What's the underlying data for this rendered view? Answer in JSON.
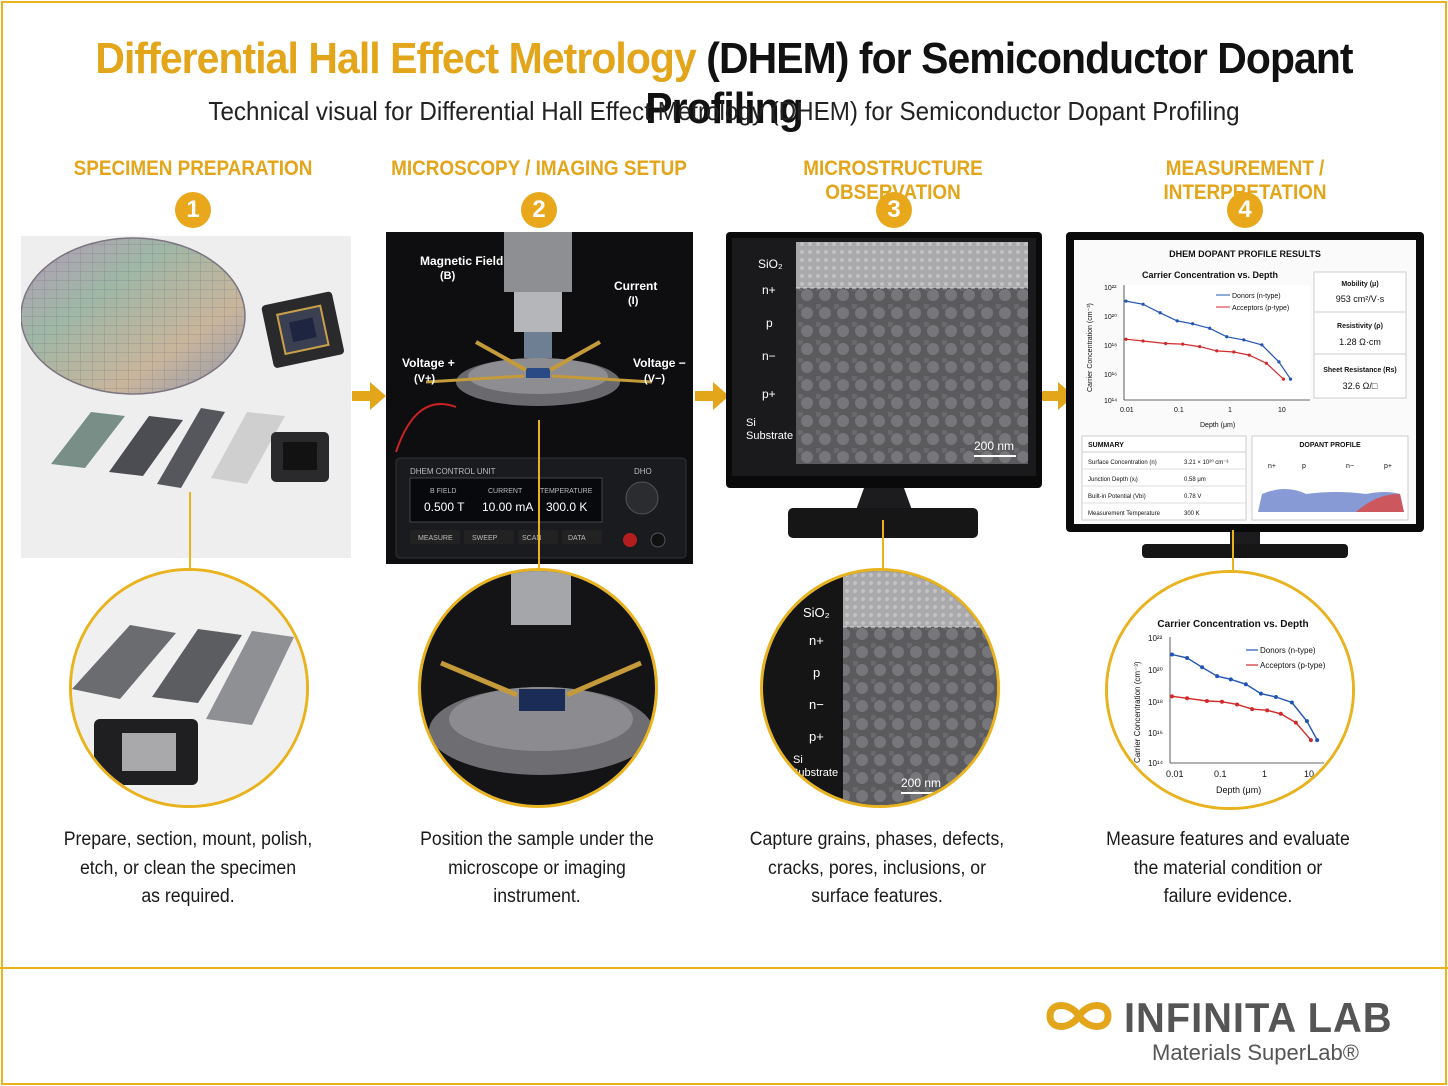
{
  "header": {
    "title_gold": "Differential Hall Effect Metrology",
    "title_dark": "(DHEM) for Semiconductor Dopant Profiling",
    "subtitle": "Technical visual for Differential Hall Effect Metrology (DHEM) for Semiconductor Dopant Profiling"
  },
  "steps": [
    {
      "number": "1",
      "title": "SPECIMEN PREPARATION",
      "caption_lines": [
        "Prepare, section, mount, polish,",
        "etch, or clean the specimen",
        "as required."
      ]
    },
    {
      "number": "2",
      "title": "MICROSCOPY / IMAGING SETUP",
      "caption_lines": [
        "Position the sample under the",
        "microscope or imaging",
        "instrument."
      ]
    },
    {
      "number": "3",
      "title": "MICROSTRUCTURE OBSERVATION",
      "caption_lines": [
        "Capture grains, phases, defects,",
        "cracks, pores, inclusions, or",
        "surface features."
      ]
    },
    {
      "number": "4",
      "title": "MEASUREMENT / INTERPRETATION",
      "caption_lines": [
        "Measure features and evaluate",
        "the material condition or",
        "failure evidence."
      ]
    }
  ],
  "setup": {
    "magnetic_field": "Magnetic Field",
    "magnetic_field_sym": "(B)",
    "current": "Current",
    "current_sym": "(I)",
    "voltage_plus": "Voltage +",
    "voltage_plus_sym": "(V+)",
    "voltage_minus": "Voltage −",
    "voltage_minus_sym": "(V−)",
    "unit_label": "DHEM CONTROL UNIT",
    "unit_brand": "DHO",
    "readouts": [
      {
        "label": "B FIELD",
        "value": "0.500 T"
      },
      {
        "label": "CURRENT",
        "value": "10.00 mA"
      },
      {
        "label": "TEMPERATURE",
        "value": "300.0 K"
      }
    ],
    "buttons": [
      "MEASURE",
      "SWEEP",
      "SCAN",
      "DATA"
    ]
  },
  "micro": {
    "layers": [
      "SiO₂",
      "n+",
      "p",
      "n−",
      "p+",
      "Si",
      "Substrate"
    ],
    "scale": "200 nm"
  },
  "results": {
    "title": "DHEM DOPANT PROFILE RESULTS",
    "mobility_label": "Mobility (μ)",
    "mobility_value": "953 cm²/V·s",
    "resistivity_label": "Resistivity (ρ)",
    "resistivity_value": "1.28 Ω·cm",
    "sheet_label": "Sheet Resistance (Rs)",
    "sheet_value": "32.6 Ω/□",
    "summary_title": "SUMMARY",
    "summary": [
      {
        "k": "Surface Concentration (n)",
        "v": "3.21 × 10²⁰ cm⁻³"
      },
      {
        "k": "Junction Depth (xⱼ)",
        "v": "0.58 μm"
      },
      {
        "k": "Built-in Potential (Vbi)",
        "v": "0.78 V"
      },
      {
        "k": "Measurement Temperature",
        "v": "300 K"
      }
    ],
    "profile_title": "DOPANT PROFILE",
    "profile_labels": [
      "n+",
      "p",
      "n−",
      "p+"
    ]
  },
  "chart_data": {
    "type": "line",
    "title": "Carrier Concentration vs. Depth",
    "xlabel": "Depth (μm)",
    "ylabel": "Carrier Concentration (cm⁻³)",
    "x_scale": "log",
    "y_scale": "log",
    "xlim": [
      0.01,
      10
    ],
    "ylim": [
      100000000000000.0,
      1e+22
    ],
    "x_ticks": [
      "0.01",
      "0.1",
      "1",
      "10"
    ],
    "y_ticks": [
      "10²²",
      "10²⁰",
      "10¹⁸",
      "10¹⁶",
      "10¹⁴"
    ],
    "legend_position": "top-right",
    "series": [
      {
        "name": "Donors (n-type)",
        "color": "#2155b5",
        "x": [
          0.01,
          0.02,
          0.04,
          0.08,
          0.15,
          0.3,
          0.6,
          1.2,
          2.5,
          5,
          8
        ],
        "y": [
          1e+21,
          6e+20,
          1.5e+20,
          4e+19,
          2.5e+19,
          1.2e+19,
          3e+18,
          1.8e+18,
          8e+17,
          5e+16,
          3000000000000000.0
        ]
      },
      {
        "name": "Acceptors (p-type)",
        "color": "#d12a2a",
        "x": [
          0.01,
          0.02,
          0.05,
          0.1,
          0.2,
          0.4,
          0.8,
          1.5,
          3,
          6
        ],
        "y": [
          2e+18,
          1.5e+18,
          1e+18,
          9e+17,
          6e+17,
          3e+17,
          2.5e+17,
          1.5e+17,
          4e+16,
          3000000000000000.0
        ]
      }
    ]
  },
  "brand": {
    "name": "INFINITA LAB",
    "tagline": "Materials SuperLab®"
  },
  "colors": {
    "accent": "#e3a51a",
    "donor": "#2155b5",
    "acceptor": "#d12a2a"
  }
}
